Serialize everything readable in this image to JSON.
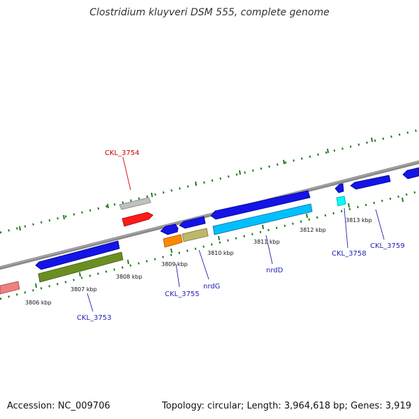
{
  "title": "Clostridium kluyveri DSM 555, complete genome",
  "footer": {
    "accession": "Accession: NC_009706",
    "summary": "Topology: circular; Length: 3,964,618 bp; Genes: 3,919"
  },
  "colors": {
    "backbone": "#8a8a8a",
    "ticks": "#1e7d1e",
    "label_blue": "#1f1fb4",
    "label_red": "#cc0000"
  },
  "ticks": [
    "3806 kbp",
    "3807 kbp",
    "3808 kbp",
    "3809 kbp",
    "3810 kbp",
    "3811 kbp",
    "3812 kbp",
    "3813 kbp"
  ],
  "gene_labels": [
    {
      "text": "CKL_3754",
      "color": "#cc0000"
    },
    {
      "text": "CKL_3753",
      "color": "#1f1fb4"
    },
    {
      "text": "CKL_3755",
      "color": "#1f1fb4"
    },
    {
      "text": "nrdG",
      "color": "#1f1fb4"
    },
    {
      "text": "nrdD",
      "color": "#1f1fb4"
    },
    {
      "text": "CKL_3758",
      "color": "#1f1fb4"
    },
    {
      "text": "CKL_3759",
      "color": "#1f1fb4"
    }
  ]
}
